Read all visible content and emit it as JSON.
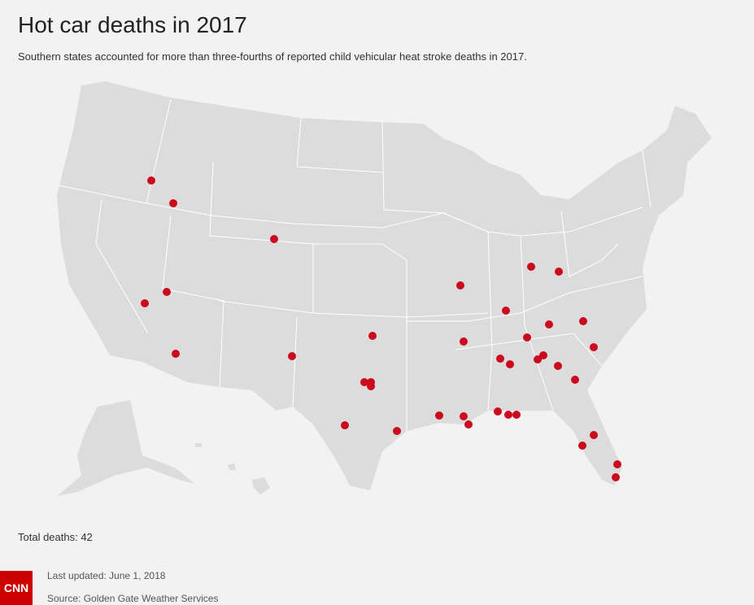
{
  "header": {
    "title": "Hot car deaths in 2017",
    "subtitle": "Southern states accounted for more than three-fourths of reported child vehicular heat stroke deaths in 2017."
  },
  "summary": {
    "total": "Total deaths: 42"
  },
  "footer": {
    "logo": "CNN",
    "updated": "Last updated: June 1, 2018",
    "source": "Source: Golden Gate Weather Services"
  }
}
